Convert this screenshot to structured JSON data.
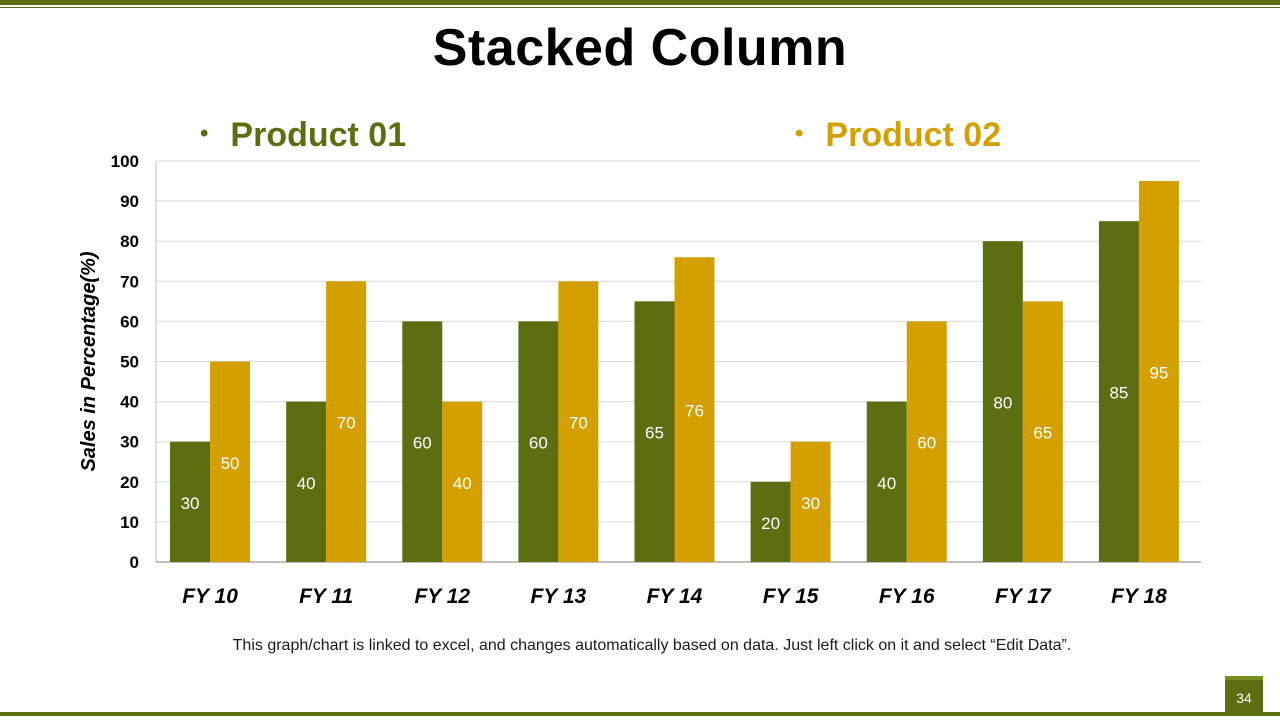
{
  "slide": {
    "title": "Stacked Column",
    "footnote": "This graph/chart is linked to excel, and changes automatically based on data. Just left click on it and select “Edit Data”.",
    "page_number": "34"
  },
  "legend": {
    "bullet": "•",
    "items": [
      "Product 01",
      "Product 02"
    ]
  },
  "colors": {
    "product_01": "#5b6e11",
    "product_02": "#d4a000",
    "accent": "#5b6e11",
    "grid": "#d9d9d9"
  },
  "chart_data": {
    "type": "bar",
    "categories": [
      "FY 10",
      "FY 11",
      "FY 12",
      "FY 13",
      "FY 14",
      "FY 15",
      "FY 16",
      "FY 17",
      "FY 18"
    ],
    "series": [
      {
        "name": "Product 01",
        "values": [
          30,
          40,
          60,
          60,
          65,
          20,
          40,
          80,
          85
        ]
      },
      {
        "name": "Product 02",
        "values": [
          50,
          70,
          40,
          70,
          76,
          30,
          60,
          65,
          95
        ]
      }
    ],
    "ylabel": "Sales in Percentage(%)",
    "xlabel": "",
    "ylim": [
      0,
      100
    ],
    "yticks": [
      0,
      10,
      20,
      30,
      40,
      50,
      60,
      70,
      80,
      90,
      100
    ],
    "grid": true,
    "legend_position": "top"
  }
}
